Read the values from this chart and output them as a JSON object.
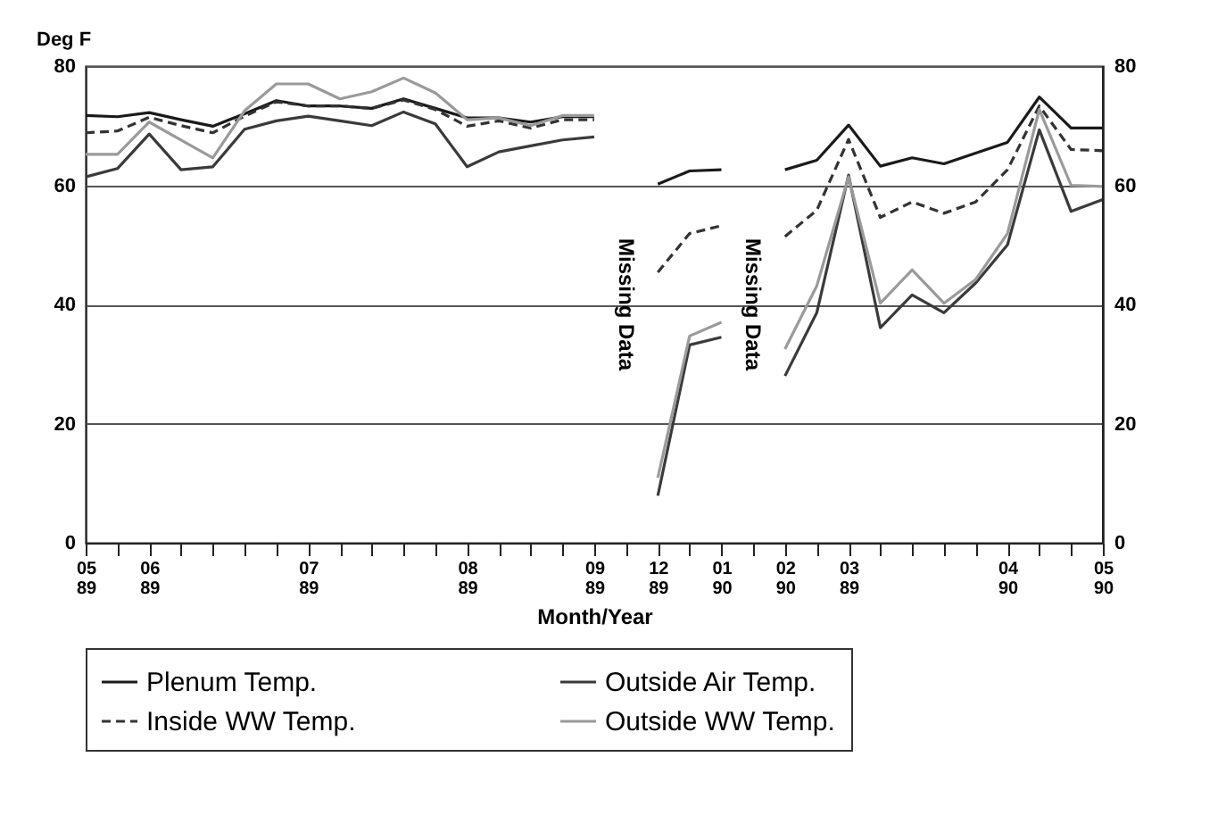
{
  "chart_data": {
    "type": "line",
    "ylabel": "Deg F",
    "xlabel": "Month/Year",
    "categories": [
      "05\n89",
      null,
      "06\n89",
      null,
      null,
      null,
      null,
      "07\n89",
      null,
      null,
      null,
      null,
      "08\n89",
      null,
      null,
      null,
      "09\n89",
      null,
      "12\n89",
      null,
      "01\n90",
      null,
      "02\n90",
      null,
      "03\n89",
      null,
      null,
      null,
      null,
      "04\n90",
      null,
      null,
      "05\n90"
    ],
    "series": [
      {
        "name": "Plenum Temp.",
        "color": "#1a1a1a",
        "line_style": "solid",
        "values": [
          71.7,
          71.5,
          72.2,
          71,
          69.9,
          72,
          74.2,
          73.3,
          73.3,
          72.9,
          74.5,
          72.9,
          71.3,
          71.3,
          70.6,
          71.5,
          71.5,
          null,
          60.2,
          62.4,
          62.6,
          null,
          62.6,
          64.2,
          70.1,
          63.2,
          64.6,
          63.6,
          65.4,
          67.2,
          74.8,
          69.6,
          69.6
        ]
      },
      {
        "name": "Outside Air Temp.",
        "color": "#3a3a3a",
        "line_style": "solid",
        "values": [
          61.4,
          62.8,
          68.6,
          62.6,
          63.1,
          69.4,
          70.8,
          71.6,
          70.8,
          70,
          72.3,
          70.3,
          63.1,
          65.6,
          66.6,
          67.6,
          68.1,
          null,
          7.9,
          33.2,
          34.5,
          null,
          28,
          38.6,
          61.7,
          36.1,
          41.6,
          38.6,
          43.6,
          50,
          69.3,
          55.6,
          57.6
        ]
      },
      {
        "name": "Inside WW Temp.",
        "color": "#333333",
        "line_style": "dashed",
        "values": [
          68.8,
          69.1,
          71.4,
          70,
          68.8,
          71.6,
          74,
          73.3,
          73.3,
          72.9,
          74.3,
          72.7,
          69.9,
          70.8,
          69.6,
          71,
          71,
          null,
          45.4,
          51.9,
          53.2,
          null,
          51.4,
          55.8,
          67.7,
          54.6,
          57.2,
          55.3,
          57.2,
          62.6,
          73.3,
          66,
          65.8
        ]
      },
      {
        "name": "Outside WW Temp.",
        "color": "#9a9a9a",
        "line_style": "solid",
        "values": [
          65.2,
          65.2,
          70.6,
          67.6,
          64.6,
          72.5,
          77,
          77,
          74.5,
          75.7,
          78,
          75.5,
          71,
          71.3,
          70,
          71.7,
          71.7,
          null,
          10.9,
          34.7,
          37,
          null,
          32.5,
          43.1,
          61.4,
          40.2,
          45.8,
          40.2,
          44.2,
          51.9,
          72.7,
          60,
          59.8
        ]
      }
    ],
    "ylim": [
      0,
      80
    ],
    "yticks": [
      0,
      20,
      40,
      60,
      80
    ],
    "y2lim": [
      0,
      80
    ],
    "y2ticks": [
      0,
      20,
      40,
      60,
      80
    ],
    "grid": "y",
    "legend": "bottom",
    "annotations": [
      "Missing Data",
      "Missing Data"
    ]
  }
}
